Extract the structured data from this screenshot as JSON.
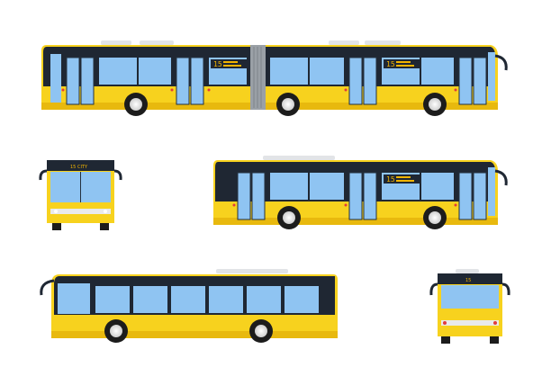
{
  "colors": {
    "body": "#f7d21e",
    "body_shadow": "#e8b90e",
    "roof": "#1f2733",
    "window": "#8fc4f2",
    "window_edge": "#24313f",
    "wheel": "#1c1c1c",
    "hub": "#e6e6e6",
    "sign_text": "#f2b400"
  },
  "signs": {
    "articulated_front": "15",
    "articulated_rear": "15",
    "standard_side": "15",
    "front_view": "15 CITY",
    "rear_view": "15"
  }
}
